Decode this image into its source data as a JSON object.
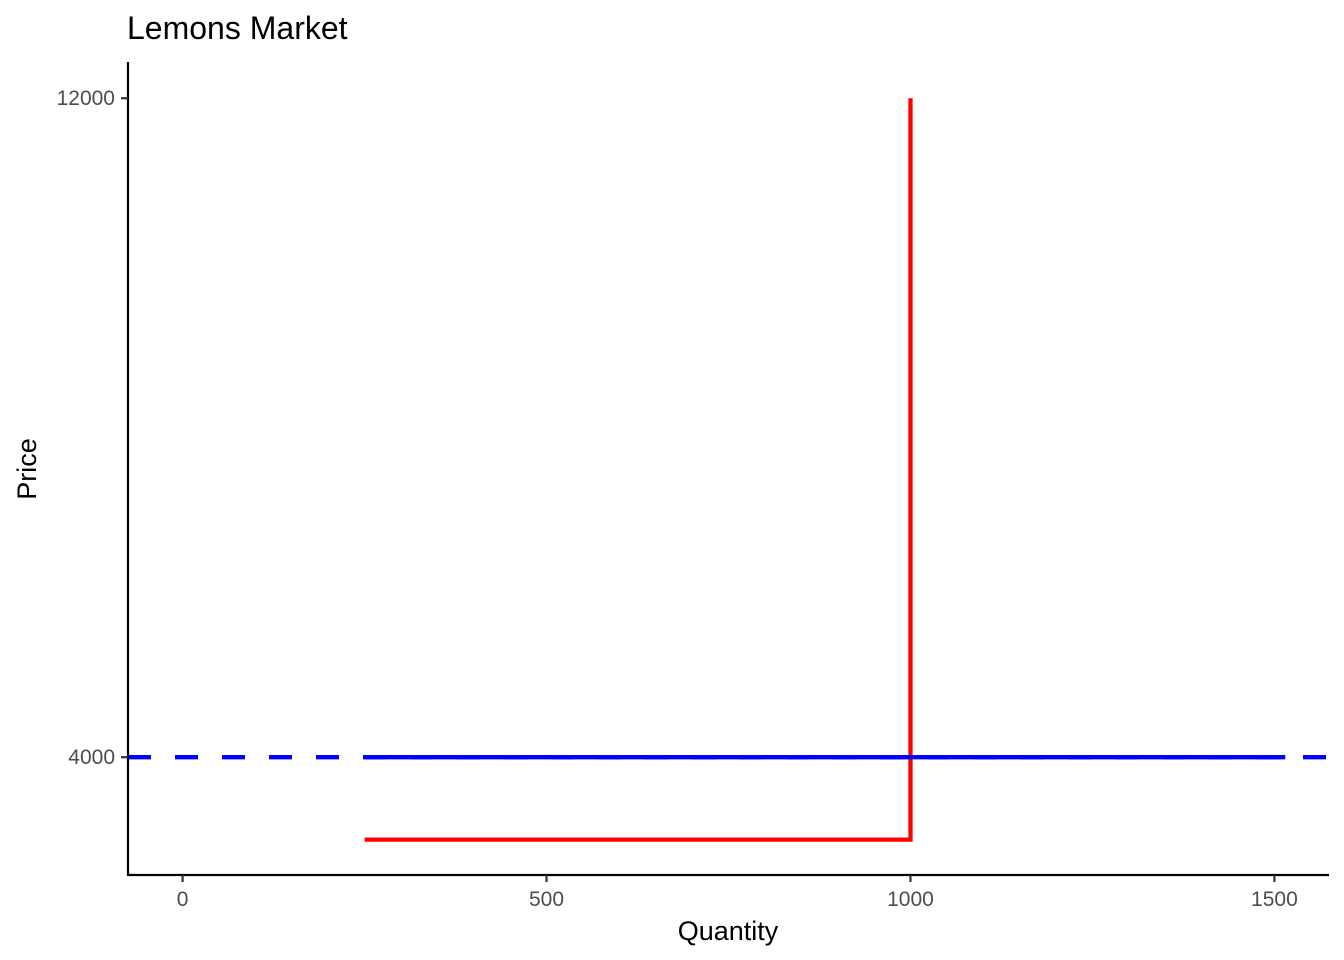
{
  "chart_data": {
    "type": "line",
    "title": "Lemons Market",
    "xlabel": "Quantity",
    "ylabel": "Price",
    "xlim": [
      -75,
      1575
    ],
    "ylim": [
      2570,
      12440
    ],
    "x_ticks": [
      0,
      500,
      1000,
      1500
    ],
    "y_ticks": [
      4000,
      12000
    ],
    "grid": false,
    "legend": "none",
    "series": [
      {
        "color": "#ff0000",
        "line_style": "solid",
        "points": [
          {
            "x": 250,
            "y": 3000
          },
          {
            "x": 1000,
            "y": 3000
          },
          {
            "x": 1000,
            "y": 12000
          }
        ]
      },
      {
        "color": "#0000ff",
        "line_style": "dashed",
        "points": [
          {
            "x": -75,
            "y": 4000
          },
          {
            "x": 1575,
            "y": 4000
          }
        ]
      },
      {
        "color": "#0000ff",
        "line_style": "solid",
        "points": [
          {
            "x": 250,
            "y": 4000
          },
          {
            "x": 1515,
            "y": 4000
          }
        ]
      }
    ]
  }
}
